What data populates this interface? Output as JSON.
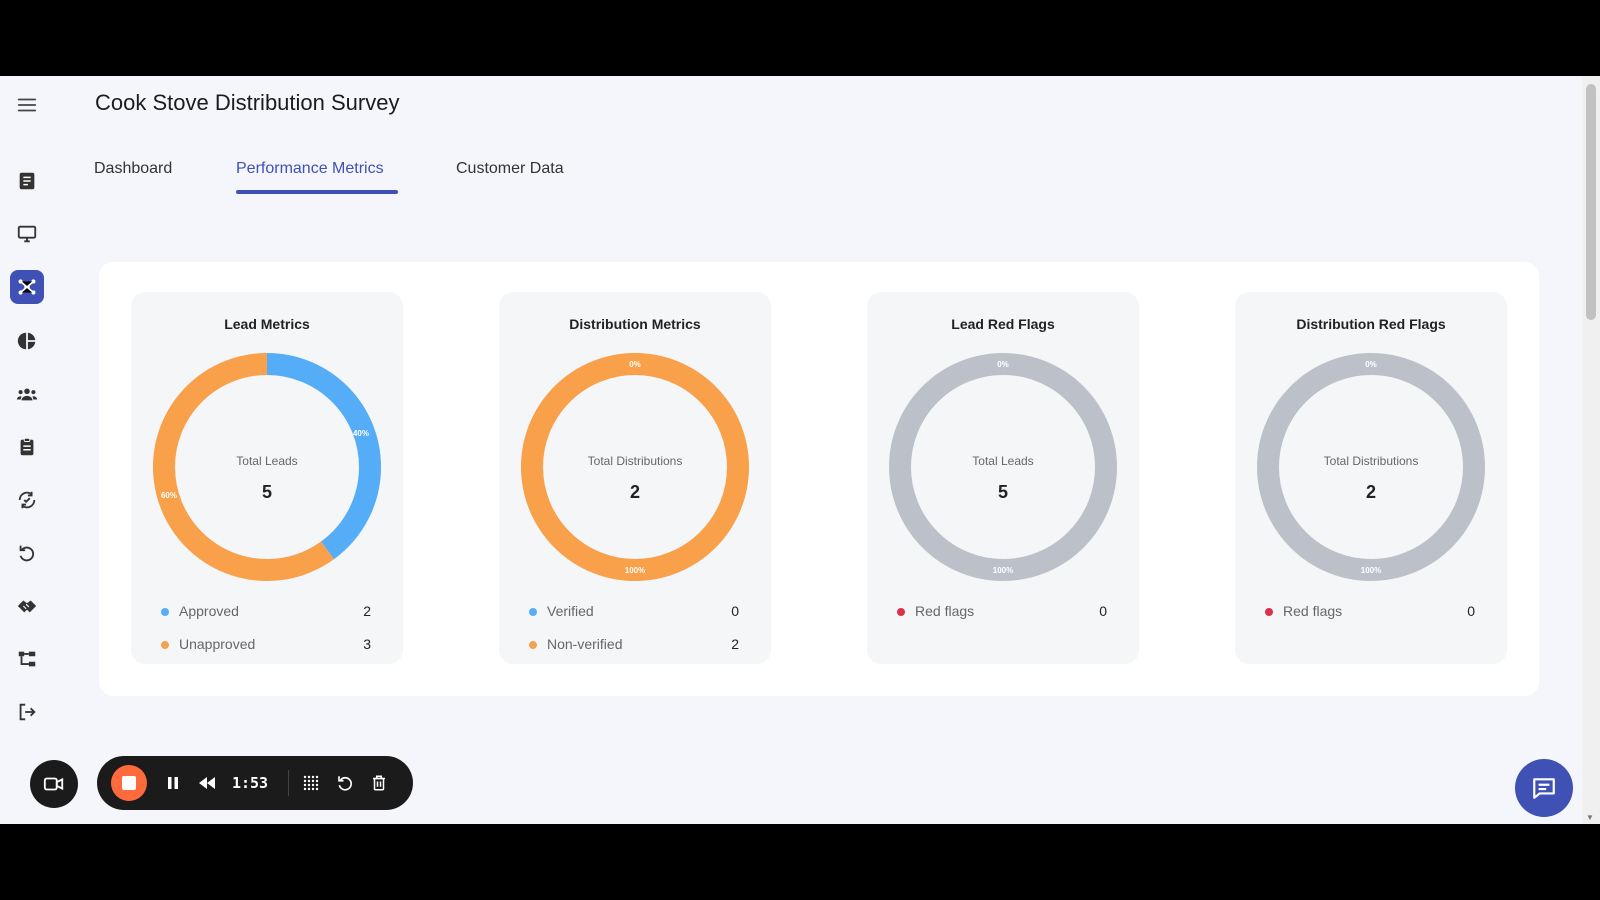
{
  "header": {
    "title": "Cook Stove Distribution Survey"
  },
  "tabs": [
    {
      "label": "Dashboard",
      "active": false
    },
    {
      "label": "Performance Metrics",
      "active": true
    },
    {
      "label": "Customer Data",
      "active": false
    }
  ],
  "sidebar": {
    "items": [
      {
        "icon": "menu-icon"
      },
      {
        "icon": "form-icon"
      },
      {
        "icon": "monitor-icon"
      },
      {
        "icon": "hub-icon",
        "active": true
      },
      {
        "icon": "pie-chart-icon"
      },
      {
        "icon": "group-icon"
      },
      {
        "icon": "clipboard-icon"
      },
      {
        "icon": "sync-check-icon"
      },
      {
        "icon": "refresh-icon"
      },
      {
        "icon": "handshake-icon"
      },
      {
        "icon": "hierarchy-icon"
      },
      {
        "icon": "logout-icon"
      }
    ]
  },
  "cards": [
    {
      "title": "Lead Metrics",
      "center_label": "Total Leads",
      "center_value": "5",
      "segments": [
        {
          "name": "Approved",
          "count": "2",
          "percent": 40,
          "percent_label": "40%",
          "color": "#55adf7"
        },
        {
          "name": "Unapproved",
          "count": "3",
          "percent": 60,
          "percent_label": "60%",
          "color": "#f8a04a"
        }
      ]
    },
    {
      "title": "Distribution Metrics",
      "center_label": "Total Distributions",
      "center_value": "2",
      "segments": [
        {
          "name": "Verified",
          "count": "0",
          "percent": 0,
          "percent_label": "0%",
          "color": "#55adf7"
        },
        {
          "name": "Non-verified",
          "count": "2",
          "percent": 100,
          "percent_label": "100%",
          "color": "#f8a04a"
        }
      ]
    },
    {
      "title": "Lead Red Flags",
      "center_label": "Total Leads",
      "center_value": "5",
      "ring_color": "#bcc1c9",
      "segments": [
        {
          "name": "Red flags",
          "count": "0",
          "percent": 0,
          "percent_label": "0%",
          "color": "#d9324a"
        }
      ],
      "remainder_label": "100%"
    },
    {
      "title": "Distribution Red Flags",
      "center_label": "Total Distributions",
      "center_value": "2",
      "ring_color": "#bcc1c9",
      "segments": [
        {
          "name": "Red flags",
          "count": "0",
          "percent": 0,
          "percent_label": "0%",
          "color": "#d9324a"
        }
      ],
      "remainder_label": "100%"
    }
  ],
  "recorder": {
    "time": "1:53",
    "stop_color": "#ff6a3d"
  },
  "colors": {
    "accent": "#3f51b5",
    "approved": "#55adf7",
    "unapproved": "#f8a04a",
    "red_flag": "#d9324a"
  }
}
